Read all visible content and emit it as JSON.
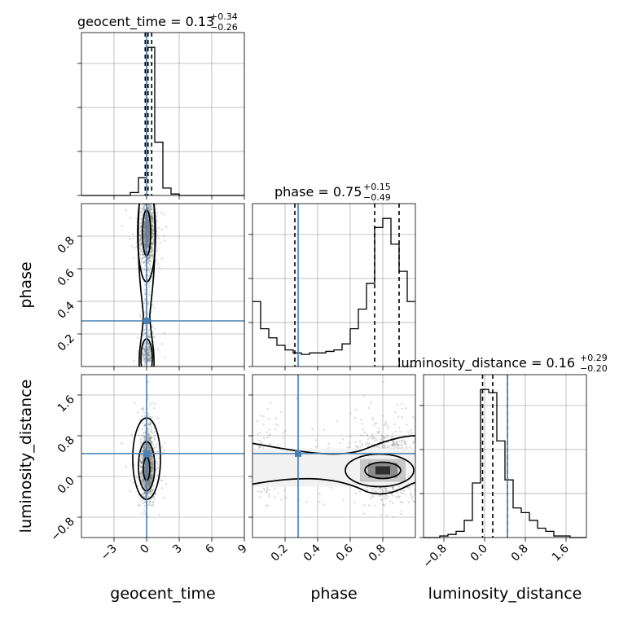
{
  "chart_data": {
    "type": "corner",
    "parameters": [
      "geocent_time",
      "phase",
      "luminosity_distance"
    ],
    "axis_labels": {
      "geocent_time": "geocent_time",
      "phase": "phase",
      "luminosity_distance": "luminosity_distance"
    },
    "titles": [
      {
        "param": "geocent_time",
        "text": "geocent_time = 0.13",
        "plus": "+0.34",
        "minus": "−0.26"
      },
      {
        "param": "phase",
        "text": "phase = 0.75",
        "plus": "+0.15",
        "minus": "−0.49"
      },
      {
        "param": "luminosity_distance",
        "text": "luminosity_distance = 0.16",
        "plus": "+0.29",
        "minus": "−0.20"
      }
    ],
    "ranges": {
      "geocent_time": [
        -6.0,
        9.0
      ],
      "phase": [
        0.0,
        1.0
      ],
      "luminosity_distance": [
        -1.2,
        2.0
      ]
    },
    "ticks": {
      "geocent_time": [
        {
          "v": -3,
          "t": "−3"
        },
        {
          "v": 0,
          "t": "0"
        },
        {
          "v": 3,
          "t": "3"
        },
        {
          "v": 6,
          "t": "6"
        },
        {
          "v": 9,
          "t": "9"
        }
      ],
      "phase": [
        {
          "v": 0.2,
          "t": "0.2"
        },
        {
          "v": 0.4,
          "t": "0.4"
        },
        {
          "v": 0.6,
          "t": "0.6"
        },
        {
          "v": 0.8,
          "t": "0.8"
        }
      ],
      "luminosity_distance": [
        {
          "v": -0.8,
          "t": "−0.8"
        },
        {
          "v": 0.0,
          "t": "0.0"
        },
        {
          "v": 0.8,
          "t": "0.8"
        },
        {
          "v": 1.6,
          "t": "1.6"
        }
      ]
    },
    "truths": {
      "geocent_time": 0.0,
      "phase": 0.28,
      "luminosity_distance": 0.45
    },
    "quantiles": {
      "geocent_time": [
        -0.13,
        0.13,
        0.47
      ],
      "phase": [
        0.26,
        0.75,
        0.9
      ],
      "luminosity_distance": [
        -0.04,
        0.16,
        0.45
      ]
    },
    "histograms": {
      "geocent_time": {
        "edges": [
          -6.0,
          -5.25,
          -4.5,
          -3.75,
          -3.0,
          -2.25,
          -1.5,
          -0.75,
          0.0,
          0.75,
          1.5,
          2.25,
          3.0,
          3.75,
          4.5,
          5.25,
          6.0,
          6.75,
          7.5,
          8.25,
          9.0
        ],
        "counts": [
          0,
          0,
          0,
          0,
          0,
          0,
          2,
          12,
          100,
          36,
          5,
          1,
          0,
          0,
          0,
          0,
          0,
          0,
          0,
          0
        ]
      },
      "phase": {
        "edges": [
          0.0,
          0.05,
          0.1,
          0.15,
          0.2,
          0.25,
          0.3,
          0.35,
          0.4,
          0.45,
          0.5,
          0.55,
          0.6,
          0.65,
          0.7,
          0.75,
          0.8,
          0.85,
          0.9,
          0.95,
          1.0
        ],
        "counts": [
          43,
          25,
          19,
          14,
          11,
          9,
          8,
          9,
          9,
          10,
          11,
          15,
          25,
          38,
          55,
          92,
          98,
          81,
          63,
          43
        ]
      },
      "luminosity_distance": {
        "edges": [
          -1.2,
          -1.04,
          -0.88,
          -0.72,
          -0.56,
          -0.4,
          -0.24,
          -0.08,
          0.08,
          0.24,
          0.4,
          0.56,
          0.72,
          0.88,
          1.04,
          1.2,
          1.36,
          1.52,
          1.68,
          1.84,
          2.0
        ],
        "counts": [
          0,
          0,
          1,
          2,
          4,
          11,
          35,
          95,
          93,
          62,
          37,
          19,
          16,
          11,
          6,
          4,
          1,
          1,
          0,
          0
        ]
      }
    }
  }
}
